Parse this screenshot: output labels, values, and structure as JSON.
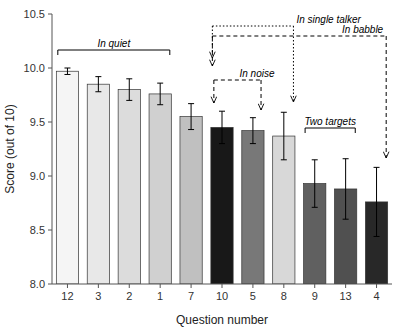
{
  "chart_data": {
    "type": "bar",
    "categories": [
      "12",
      "3",
      "2",
      "1",
      "7",
      "10",
      "5",
      "8",
      "9",
      "13",
      "4"
    ],
    "values": [
      9.97,
      9.85,
      9.8,
      9.76,
      9.55,
      9.45,
      9.42,
      9.37,
      8.93,
      8.88,
      8.76
    ],
    "errors": [
      0.03,
      0.07,
      0.1,
      0.1,
      0.12,
      0.15,
      0.12,
      0.22,
      0.22,
      0.28,
      0.32
    ],
    "colors": [
      "#f5f5f5",
      "#e8e8e8",
      "#dcdcdc",
      "#d0d0d0",
      "#c0c0c0",
      "#181818",
      "#787878",
      "#d8d8d8",
      "#606060",
      "#505050",
      "#282828"
    ],
    "xlabel": "Question number",
    "ylabel": "Score (out of 10)",
    "ylim": [
      8.0,
      10.5
    ],
    "yticks": [
      {
        "value": 8.0,
        "label": "8.0"
      },
      {
        "value": 8.5,
        "label": "8.5"
      },
      {
        "value": 9.0,
        "label": "9.0"
      },
      {
        "value": 9.5,
        "label": "9.5"
      },
      {
        "value": 10.0,
        "label": "10.0"
      },
      {
        "value": 10.5,
        "label": "10.5"
      }
    ],
    "grid": false,
    "annotations": [
      {
        "text": "In quiet",
        "from": "12",
        "to": "1",
        "line_style": "solid"
      },
      {
        "text": "In single talker",
        "from": "10",
        "to": "8",
        "line_style": "dotted"
      },
      {
        "text": "In babble",
        "from": "10",
        "to": "4",
        "line_style": "dashed"
      },
      {
        "text": "In noise",
        "from": "10",
        "to": "5",
        "line_style": "dashed"
      },
      {
        "text": "Two targets",
        "from": "9",
        "to": "13",
        "line_style": "solid"
      }
    ]
  }
}
